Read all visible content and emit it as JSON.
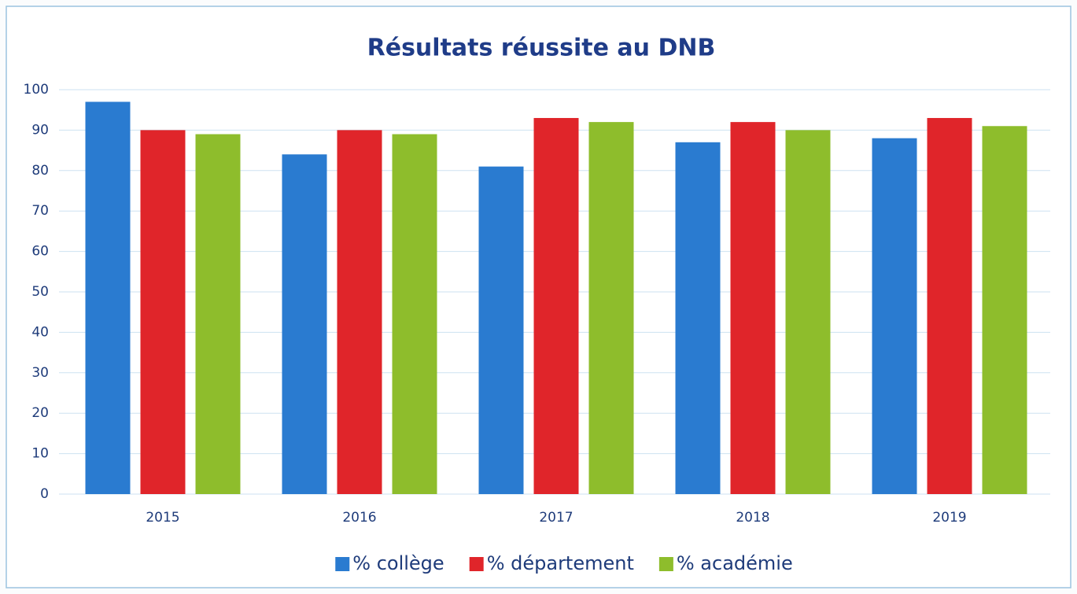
{
  "chart_data": {
    "type": "bar",
    "title": "Résultats réussite au DNB",
    "categories": [
      "2015",
      "2016",
      "2017",
      "2018",
      "2019"
    ],
    "series": [
      {
        "name": "% collège",
        "color": "#2a7bd0",
        "values": [
          97,
          84,
          81,
          87,
          88
        ]
      },
      {
        "name": "% département",
        "color": "#e0252a",
        "values": [
          90,
          90,
          93,
          92,
          93
        ]
      },
      {
        "name": "% académie",
        "color": "#8ebd2c",
        "values": [
          89,
          89,
          92,
          90,
          91
        ]
      }
    ],
    "ylim": [
      0,
      100
    ],
    "yticks": [
      0,
      10,
      20,
      30,
      40,
      50,
      60,
      70,
      80,
      90,
      100
    ],
    "grid": true,
    "legend": "bottom"
  }
}
